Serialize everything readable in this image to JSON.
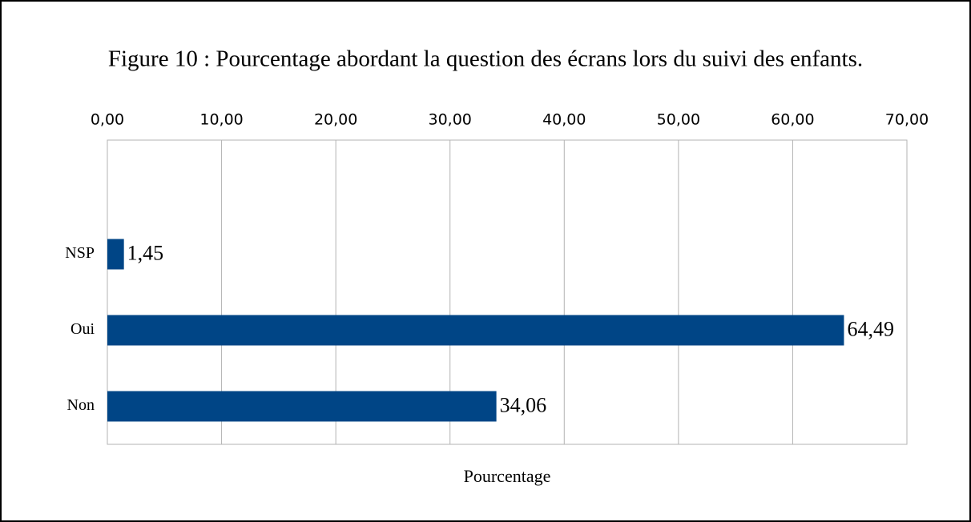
{
  "chart_data": {
    "type": "hbar",
    "title": "Figure 10 : Pourcentage abordant la question des écrans lors du suivi des enfants.",
    "categories": [
      null,
      "NSP",
      "Oui",
      "Non"
    ],
    "values": [
      null,
      1.45,
      64.49,
      34.06
    ],
    "value_labels": [
      null,
      "1,45",
      "64,49",
      "34,06"
    ],
    "color": "#004586",
    "xlabel": "Pourcentage",
    "xlim": [
      0,
      70
    ],
    "xticks": [
      {
        "value": 0,
        "label": "0,00"
      },
      {
        "value": 10,
        "label": "10,00"
      },
      {
        "value": 20,
        "label": "20,00"
      },
      {
        "value": 30,
        "label": "30,00"
      },
      {
        "value": 40,
        "label": "40,00"
      },
      {
        "value": 50,
        "label": "50,00"
      },
      {
        "value": 60,
        "label": "60,00"
      },
      {
        "value": 70,
        "label": "70,00"
      }
    ],
    "grid": true
  }
}
